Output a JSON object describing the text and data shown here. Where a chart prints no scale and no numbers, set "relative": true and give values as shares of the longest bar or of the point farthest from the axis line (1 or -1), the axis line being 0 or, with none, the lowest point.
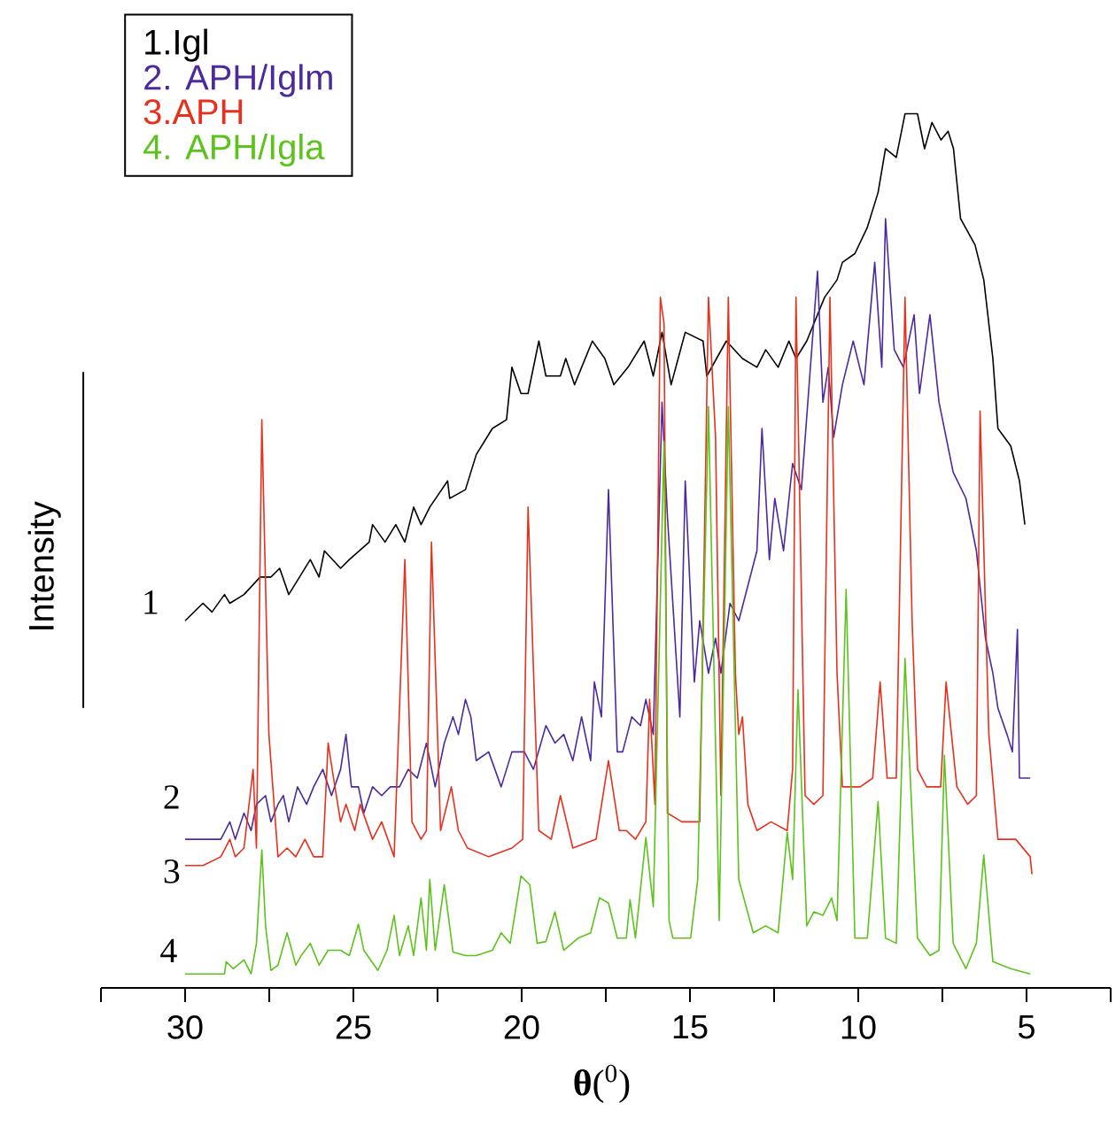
{
  "chart_data": {
    "type": "line",
    "relative": true,
    "xlabel": "**θ**($^{0}$)",
    "ylabel": "Intensity",
    "legend": "top left",
    "xlim": [
      32.5,
      2.5
    ],
    "xticks": [
      {
        "value": 32.5,
        "label": null
      },
      30,
      {
        "value": 27.5,
        "label": null
      },
      25,
      {
        "value": 22.5,
        "label": null
      },
      20,
      {
        "value": 17.5,
        "label": null
      },
      15,
      {
        "value": 12.5,
        "label": null
      },
      10,
      {
        "value": 7.5,
        "label": null
      },
      5,
      {
        "value": 2.5,
        "label": null
      }
    ],
    "annotations": [
      "1",
      "2",
      "3",
      "4"
    ],
    "series": [
      {
        "name": "1.Igl",
        "color": "#000000",
        "x": [
          30.0,
          29.47,
          29.2,
          28.83,
          28.67,
          28.25,
          27.77,
          27.45,
          27.19,
          26.92,
          26.28,
          26.02,
          25.86,
          25.38,
          25.12,
          24.53,
          24.43,
          24.06,
          23.74,
          23.47,
          23.21,
          22.99,
          22.73,
          22.2,
          22.14,
          21.67,
          21.35,
          20.87,
          20.45,
          20.29,
          20.02,
          19.81,
          19.49,
          19.28,
          18.85,
          18.69,
          18.43,
          17.9,
          17.53,
          17.26,
          16.84,
          16.36,
          16.09,
          15.83,
          15.56,
          15.14,
          14.61,
          14.5,
          13.92,
          13.44,
          13.01,
          12.75,
          12.38,
          12.06,
          11.85,
          11.53,
          11.0,
          10.63,
          10.47,
          10.1,
          9.73,
          9.41,
          9.19,
          8.87,
          8.61,
          8.24,
          8.03,
          7.81,
          7.54,
          7.33,
          7.17,
          6.96,
          6.53,
          6.27,
          6.0,
          5.85,
          5.47,
          5.21,
          5.05
        ],
        "values": [
          0.42,
          0.44,
          0.43,
          0.45,
          0.44,
          0.45,
          0.47,
          0.47,
          0.48,
          0.45,
          0.49,
          0.47,
          0.5,
          0.48,
          0.49,
          0.51,
          0.53,
          0.51,
          0.53,
          0.51,
          0.55,
          0.53,
          0.55,
          0.58,
          0.56,
          0.57,
          0.61,
          0.64,
          0.65,
          0.71,
          0.68,
          0.68,
          0.74,
          0.7,
          0.7,
          0.72,
          0.69,
          0.74,
          0.72,
          0.69,
          0.71,
          0.74,
          0.7,
          0.75,
          0.69,
          0.75,
          0.74,
          0.7,
          0.74,
          0.72,
          0.71,
          0.73,
          0.71,
          0.74,
          0.72,
          0.74,
          0.79,
          0.81,
          0.83,
          0.84,
          0.87,
          0.91,
          0.96,
          0.95,
          1.0,
          1.0,
          0.96,
          0.99,
          0.97,
          0.98,
          0.96,
          0.88,
          0.85,
          0.81,
          0.72,
          0.64,
          0.62,
          0.58,
          0.53
        ]
      },
      {
        "name": "2. APH/Iglm",
        "color": "#4b2a9e",
        "x": [
          30.0,
          29.47,
          28.94,
          28.67,
          28.51,
          28.25,
          28.04,
          27.88,
          27.61,
          27.45,
          27.24,
          27.08,
          26.92,
          26.66,
          26.39,
          26.18,
          25.91,
          25.65,
          25.38,
          25.22,
          25.06,
          24.85,
          24.69,
          24.43,
          24.16,
          23.9,
          23.63,
          23.37,
          23.1,
          22.83,
          22.57,
          22.3,
          22.04,
          21.88,
          21.67,
          21.51,
          21.35,
          20.98,
          20.61,
          20.29,
          19.92,
          19.65,
          19.28,
          19.01,
          18.75,
          18.48,
          18.22,
          17.95,
          17.84,
          17.63,
          17.42,
          17.16,
          17.0,
          16.73,
          16.47,
          16.31,
          16.09,
          15.83,
          15.67,
          15.3,
          15.14,
          14.87,
          14.71,
          14.45,
          14.24,
          14.08,
          13.81,
          13.55,
          13.28,
          13.01,
          12.86,
          12.64,
          12.48,
          12.22,
          11.95,
          11.69,
          11.21,
          11.05,
          10.89,
          10.73,
          10.47,
          10.15,
          9.83,
          9.51,
          9.3,
          9.19,
          8.93,
          8.66,
          8.34,
          8.18,
          7.87,
          7.6,
          7.18,
          6.8,
          6.49,
          6.22,
          6.0,
          5.85,
          5.58,
          5.42,
          5.27,
          5.21,
          4.89
        ],
        "values": [
          0.17,
          0.17,
          0.17,
          0.19,
          0.17,
          0.2,
          0.18,
          0.21,
          0.22,
          0.19,
          0.21,
          0.22,
          0.19,
          0.23,
          0.21,
          0.23,
          0.25,
          0.22,
          0.25,
          0.29,
          0.23,
          0.23,
          0.2,
          0.23,
          0.22,
          0.23,
          0.23,
          0.25,
          0.24,
          0.28,
          0.23,
          0.28,
          0.31,
          0.29,
          0.33,
          0.31,
          0.26,
          0.27,
          0.23,
          0.27,
          0.27,
          0.25,
          0.3,
          0.28,
          0.29,
          0.26,
          0.31,
          0.26,
          0.35,
          0.31,
          0.57,
          0.27,
          0.27,
          0.31,
          0.3,
          0.33,
          0.29,
          0.67,
          0.54,
          0.31,
          0.58,
          0.35,
          0.42,
          0.36,
          0.4,
          0.36,
          0.44,
          0.42,
          0.46,
          0.5,
          0.64,
          0.49,
          0.56,
          0.5,
          0.6,
          0.57,
          0.82,
          0.67,
          0.71,
          0.63,
          0.69,
          0.74,
          0.69,
          0.83,
          0.71,
          0.88,
          0.73,
          0.71,
          0.77,
          0.68,
          0.77,
          0.67,
          0.59,
          0.56,
          0.5,
          0.4,
          0.36,
          0.32,
          0.29,
          0.27,
          0.41,
          0.24,
          0.24
        ]
      },
      {
        "name": "3.APH",
        "color": "#e8301c",
        "x": [
          30.0,
          29.47,
          28.94,
          28.67,
          28.51,
          28.25,
          27.98,
          27.88,
          27.72,
          27.51,
          27.24,
          26.97,
          26.71,
          26.44,
          26.18,
          25.91,
          25.75,
          25.59,
          25.38,
          25.22,
          24.96,
          24.8,
          24.43,
          24.16,
          23.79,
          23.47,
          23.26,
          22.99,
          22.83,
          22.68,
          22.41,
          22.09,
          21.88,
          21.61,
          20.98,
          20.29,
          19.97,
          19.81,
          19.49,
          19.12,
          18.85,
          18.48,
          17.79,
          17.42,
          17.1,
          16.89,
          16.62,
          16.31,
          16.2,
          16.04,
          15.88,
          15.77,
          15.67,
          15.24,
          14.71,
          14.45,
          14.24,
          14.08,
          13.86,
          13.65,
          13.55,
          13.44,
          13.28,
          13.01,
          12.59,
          12.11,
          11.95,
          11.85,
          11.58,
          11.32,
          11.05,
          10.84,
          10.63,
          10.47,
          9.94,
          9.57,
          9.35,
          9.14,
          8.87,
          8.61,
          8.4,
          8.24,
          7.97,
          7.55,
          7.39,
          7.07,
          6.75,
          6.49,
          6.38,
          6.12,
          5.85,
          5.32,
          4.89,
          4.84
        ],
        "values": [
          0.14,
          0.14,
          0.15,
          0.17,
          0.15,
          0.16,
          0.25,
          0.16,
          0.65,
          0.29,
          0.15,
          0.16,
          0.15,
          0.17,
          0.15,
          0.15,
          0.28,
          0.24,
          0.19,
          0.21,
          0.18,
          0.21,
          0.17,
          0.19,
          0.15,
          0.49,
          0.19,
          0.17,
          0.18,
          0.51,
          0.18,
          0.23,
          0.18,
          0.16,
          0.15,
          0.16,
          0.17,
          0.55,
          0.18,
          0.17,
          0.22,
          0.16,
          0.17,
          0.26,
          0.18,
          0.18,
          0.17,
          0.19,
          0.33,
          0.21,
          0.79,
          0.76,
          0.2,
          0.19,
          0.19,
          0.79,
          0.63,
          0.22,
          0.79,
          0.36,
          0.29,
          0.31,
          0.21,
          0.18,
          0.19,
          0.18,
          0.25,
          0.79,
          0.22,
          0.21,
          0.22,
          0.79,
          0.36,
          0.23,
          0.23,
          0.24,
          0.35,
          0.24,
          0.24,
          0.79,
          0.42,
          0.25,
          0.23,
          0.23,
          0.35,
          0.23,
          0.21,
          0.22,
          0.66,
          0.29,
          0.17,
          0.17,
          0.15,
          0.13
        ]
      },
      {
        "name": "4. APH/Igla",
        "color": "#5cc21c",
        "x": [
          30.0,
          28.83,
          28.78,
          28.57,
          28.25,
          28.04,
          27.88,
          27.72,
          27.61,
          27.45,
          27.24,
          26.97,
          26.71,
          26.55,
          26.28,
          26.02,
          25.75,
          25.38,
          25.12,
          24.85,
          24.69,
          24.27,
          24.0,
          23.79,
          23.63,
          23.37,
          23.21,
          22.99,
          22.83,
          22.73,
          22.57,
          22.3,
          22.04,
          21.67,
          21.35,
          20.87,
          20.61,
          20.34,
          20.02,
          19.76,
          19.54,
          19.28,
          19.01,
          18.75,
          18.32,
          17.95,
          17.69,
          17.42,
          17.16,
          16.89,
          16.78,
          16.62,
          16.31,
          16.09,
          15.77,
          15.62,
          15.51,
          14.98,
          14.77,
          14.45,
          14.13,
          13.86,
          13.55,
          13.12,
          12.75,
          12.38,
          12.11,
          11.95,
          11.79,
          11.53,
          11.32,
          11.05,
          10.79,
          10.63,
          10.36,
          10.1,
          9.73,
          9.41,
          9.19,
          8.87,
          8.61,
          8.24,
          7.87,
          7.6,
          7.44,
          7.18,
          6.8,
          6.49,
          6.27,
          6.0,
          5.47,
          4.89
        ],
        "values": [
          0.016,
          0.016,
          0.03,
          0.022,
          0.032,
          0.016,
          0.051,
          0.158,
          0.071,
          0.02,
          0.026,
          0.063,
          0.026,
          0.037,
          0.051,
          0.026,
          0.043,
          0.043,
          0.037,
          0.073,
          0.043,
          0.02,
          0.043,
          0.083,
          0.037,
          0.071,
          0.037,
          0.103,
          0.043,
          0.124,
          0.043,
          0.118,
          0.041,
          0.037,
          0.037,
          0.043,
          0.063,
          0.051,
          0.128,
          0.118,
          0.051,
          0.053,
          0.087,
          0.043,
          0.057,
          0.063,
          0.103,
          0.097,
          0.057,
          0.057,
          0.101,
          0.057,
          0.172,
          0.093,
          0.625,
          0.077,
          0.057,
          0.057,
          0.124,
          0.665,
          0.077,
          0.665,
          0.124,
          0.063,
          0.071,
          0.063,
          0.178,
          0.124,
          0.341,
          0.071,
          0.087,
          0.083,
          0.103,
          0.077,
          0.456,
          0.057,
          0.057,
          0.213,
          0.057,
          0.051,
          0.377,
          0.057,
          0.037,
          0.043,
          0.266,
          0.051,
          0.022,
          0.051,
          0.152,
          0.03,
          0.022,
          0.016
        ]
      }
    ]
  }
}
